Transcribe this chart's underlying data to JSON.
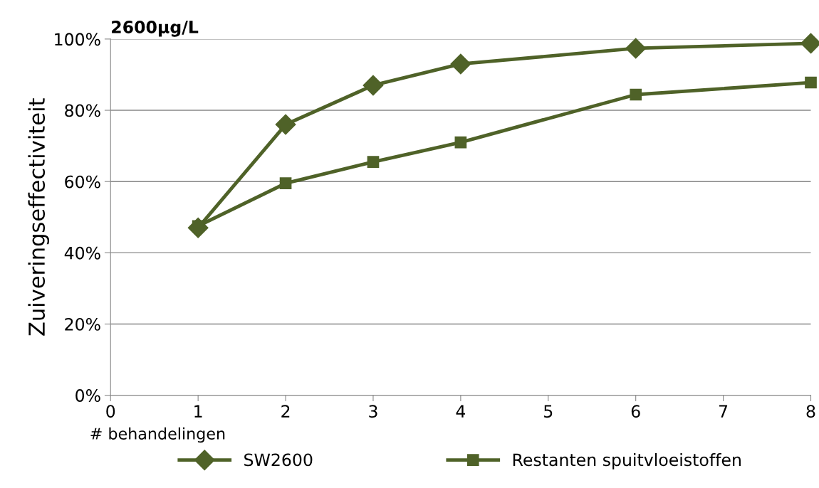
{
  "chart_data": {
    "type": "line",
    "title": "2600µg/L",
    "xlabel": "# behandelingen",
    "ylabel": "Zuiveringseffectiviteit",
    "xlim": [
      0,
      8
    ],
    "xticks": [
      0,
      1,
      2,
      3,
      4,
      5,
      6,
      7,
      8
    ],
    "ylim": [
      0,
      100
    ],
    "yticks": [
      {
        "value": 0,
        "label": "0%"
      },
      {
        "value": 20,
        "label": "20%"
      },
      {
        "value": 40,
        "label": "40%"
      },
      {
        "value": 60,
        "label": "60%"
      },
      {
        "value": 80,
        "label": "80%"
      },
      {
        "value": 100,
        "label": "100%"
      }
    ],
    "grid": "y",
    "legend": "bottom",
    "series": [
      {
        "name": "SW2600",
        "color": "#4f6228",
        "marker": "diamond",
        "x": [
          1,
          2,
          3,
          4,
          6,
          8
        ],
        "values": [
          47,
          76,
          87,
          93,
          97.4,
          98.8
        ]
      },
      {
        "name": "Restanten spuitvloeistoffen",
        "color": "#4f6228",
        "marker": "square",
        "x": [
          1,
          2,
          3,
          4,
          6,
          8
        ],
        "values": [
          47.5,
          59.5,
          65.5,
          71,
          84.4,
          87.8
        ]
      }
    ]
  }
}
